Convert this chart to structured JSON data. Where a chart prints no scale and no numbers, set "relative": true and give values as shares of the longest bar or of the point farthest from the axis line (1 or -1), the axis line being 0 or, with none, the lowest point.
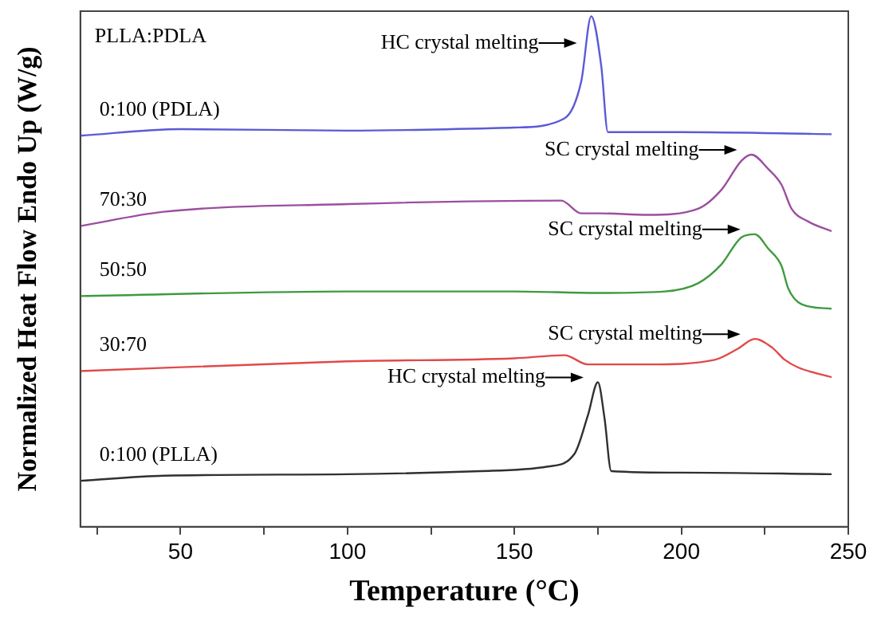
{
  "chart_data": {
    "type": "line",
    "relative": true,
    "xlabel": "Temperature (°C)",
    "ylabel": "Normalized Heat Flow Endo Up (W/g)",
    "legend_title": "PLLA:PDLA",
    "xlim": [
      20,
      250
    ],
    "xticks": [
      {
        "value": 25,
        "label": null
      },
      50,
      {
        "value": 75,
        "label": null
      },
      100,
      {
        "value": 125,
        "label": null
      },
      150,
      {
        "value": 175,
        "label": null
      },
      200,
      {
        "value": 225,
        "label": null
      },
      250
    ],
    "tick_labels": "x",
    "grid": false,
    "legend": false,
    "marker": "none",
    "line_style": "solid",
    "series": [
      {
        "name": "0:100 (PDLA)",
        "color": "#5b5bd6",
        "x": [
          20,
          50,
          100,
          150,
          165,
          170,
          173,
          176,
          178,
          200,
          245
        ],
        "values": [
          0.766,
          0.779,
          0.776,
          0.782,
          0.8,
          0.872,
          1,
          0.903,
          0.773,
          0.773,
          0.769
        ]
      },
      {
        "name": "70:30",
        "color": "#9b4f9f",
        "x": [
          20,
          45,
          100,
          164,
          170,
          175,
          190,
          205,
          212,
          218,
          221,
          226,
          230,
          233,
          238,
          245
        ],
        "values": [
          0.589,
          0.617,
          0.632,
          0.639,
          0.614,
          0.614,
          0.611,
          0.623,
          0.66,
          0.717,
          0.729,
          0.701,
          0.67,
          0.623,
          0.598,
          0.579
        ]
      },
      {
        "name": "50:50",
        "color": "#3f9a3f",
        "x": [
          20,
          100,
          150,
          175,
          195,
          205,
          212,
          218,
          222,
          226,
          230,
          232,
          236,
          245
        ],
        "values": [
          0.452,
          0.461,
          0.461,
          0.458,
          0.461,
          0.477,
          0.514,
          0.567,
          0.573,
          0.545,
          0.511,
          0.467,
          0.436,
          0.427
        ]
      },
      {
        "name": "30:70",
        "color": "#e04a4a",
        "x": [
          20,
          100,
          150,
          165,
          172,
          190,
          210,
          217,
          222,
          227,
          231,
          235,
          245
        ],
        "values": [
          0.305,
          0.324,
          0.33,
          0.336,
          0.318,
          0.318,
          0.327,
          0.349,
          0.368,
          0.352,
          0.327,
          0.312,
          0.293
        ]
      },
      {
        "name": "0:100 (PLLA)",
        "color": "#303030",
        "x": [
          20,
          45,
          100,
          140,
          160,
          168,
          172,
          175,
          177,
          179,
          200,
          245
        ],
        "values": [
          0.09,
          0.1,
          0.103,
          0.109,
          0.118,
          0.143,
          0.218,
          0.283,
          0.212,
          0.109,
          0.106,
          0.103
        ]
      }
    ],
    "annotations": [
      {
        "text": "HC crystal melting",
        "x": 173,
        "y": 1
      },
      {
        "text": "SC crystal melting",
        "x": 221,
        "y": 0.729
      },
      {
        "text": "SC crystal melting",
        "x": 222,
        "y": 0.573
      },
      {
        "text": "SC crystal melting",
        "x": 222,
        "y": 0.368
      },
      {
        "text": "HC crystal melting",
        "x": 175,
        "y": 0.283
      }
    ]
  }
}
